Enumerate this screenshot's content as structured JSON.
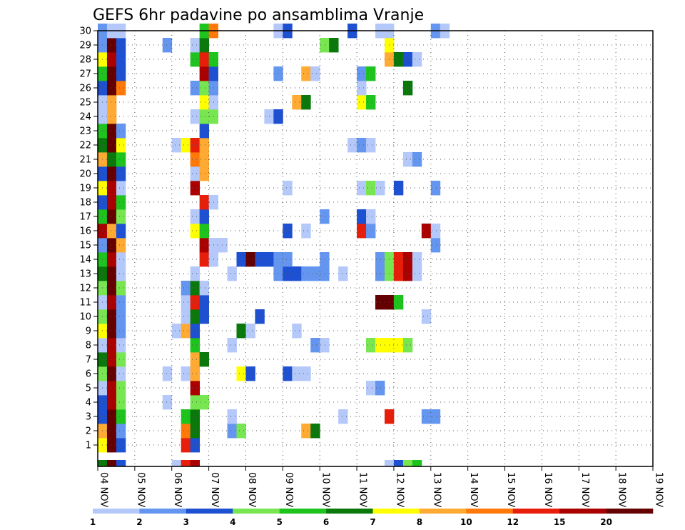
{
  "chart_data": {
    "type": "heatmap",
    "title": "GEFS 6hr padavine po ansamblima Vranje",
    "x_tick_labels": [
      "04 NOV",
      "05 NOV",
      "06 NOV",
      "07 NOV",
      "08 NOV",
      "09 NOV",
      "10 NOV",
      "11 NOV",
      "12 NOV",
      "13 NOV",
      "14 NOV",
      "15 NOV",
      "16 NOV",
      "17 NOV",
      "18 NOV",
      "19 NOV"
    ],
    "y_tick_labels": [
      "1",
      "2",
      "3",
      "4",
      "5",
      "6",
      "7",
      "8",
      "9",
      "10",
      "11",
      "12",
      "13",
      "14",
      "15",
      "16",
      "17",
      "18",
      "19",
      "20",
      "21",
      "22",
      "23",
      "24",
      "25",
      "26",
      "27",
      "28",
      "29",
      "30"
    ],
    "ylim": [
      0,
      30
    ],
    "time_steps_per_day": 4,
    "grid": "dotted",
    "colorbar": {
      "orientation": "horizontal",
      "position": "bottom",
      "labels": [
        "1",
        "2",
        "3",
        "4",
        "5",
        "6",
        "7",
        "8",
        "10",
        "12",
        "15",
        "20"
      ],
      "colors": [
        "#b4c8fa",
        "#6496f0",
        "#1e50d2",
        "#78e650",
        "#1ec31e",
        "#0a780a",
        "#ffff00",
        "#ffaa32",
        "#ff780a",
        "#e61e0a",
        "#aa0000",
        "#640000"
      ]
    },
    "ensemble_rows": [
      {
        "member": 1,
        "cells": [
          [
            0,
            6
          ],
          [
            1,
            11
          ],
          [
            2,
            2
          ],
          [
            9,
            9
          ],
          [
            10,
            2
          ]
        ]
      },
      {
        "member": 2,
        "cells": [
          [
            0,
            7
          ],
          [
            1,
            11
          ],
          [
            2,
            1
          ],
          [
            9,
            8
          ],
          [
            10,
            5
          ],
          [
            14,
            1
          ],
          [
            15,
            3
          ],
          [
            22,
            7
          ],
          [
            23,
            5
          ]
        ]
      },
      {
        "member": 3,
        "cells": [
          [
            0,
            2
          ],
          [
            1,
            11
          ],
          [
            2,
            4
          ],
          [
            9,
            4
          ],
          [
            10,
            5
          ],
          [
            14,
            0
          ],
          [
            26,
            0
          ],
          [
            31,
            9
          ],
          [
            35,
            1
          ],
          [
            36,
            1
          ]
        ]
      },
      {
        "member": 4,
        "cells": [
          [
            0,
            2
          ],
          [
            1,
            10
          ],
          [
            2,
            3
          ],
          [
            7,
            0
          ],
          [
            10,
            3
          ],
          [
            11,
            3
          ]
        ]
      },
      {
        "member": 5,
        "cells": [
          [
            0,
            0
          ],
          [
            1,
            10
          ],
          [
            2,
            3
          ],
          [
            10,
            10
          ],
          [
            29,
            0
          ],
          [
            30,
            1
          ]
        ]
      },
      {
        "member": 6,
        "cells": [
          [
            0,
            3
          ],
          [
            1,
            11
          ],
          [
            2,
            0
          ],
          [
            7,
            0
          ],
          [
            9,
            0
          ],
          [
            10,
            7
          ],
          [
            15,
            6
          ],
          [
            16,
            2
          ],
          [
            20,
            2
          ],
          [
            21,
            0
          ],
          [
            22,
            0
          ]
        ]
      },
      {
        "member": 7,
        "cells": [
          [
            0,
            5
          ],
          [
            1,
            10
          ],
          [
            2,
            3
          ],
          [
            10,
            7
          ],
          [
            11,
            5
          ]
        ]
      },
      {
        "member": 8,
        "cells": [
          [
            0,
            0
          ],
          [
            1,
            10
          ],
          [
            2,
            0
          ],
          [
            10,
            4
          ],
          [
            14,
            0
          ],
          [
            23,
            1
          ],
          [
            24,
            0
          ],
          [
            29,
            3
          ],
          [
            30,
            6
          ],
          [
            31,
            6
          ],
          [
            32,
            6
          ],
          [
            33,
            3
          ]
        ]
      },
      {
        "member": 9,
        "cells": [
          [
            0,
            6
          ],
          [
            1,
            11
          ],
          [
            2,
            1
          ],
          [
            8,
            0
          ],
          [
            9,
            7
          ],
          [
            10,
            2
          ],
          [
            15,
            5
          ],
          [
            16,
            0
          ],
          [
            21,
            0
          ]
        ]
      },
      {
        "member": 10,
        "cells": [
          [
            0,
            3
          ],
          [
            1,
            11
          ],
          [
            2,
            1
          ],
          [
            9,
            0
          ],
          [
            10,
            5
          ],
          [
            11,
            2
          ],
          [
            17,
            2
          ],
          [
            35,
            0
          ]
        ]
      },
      {
        "member": 11,
        "cells": [
          [
            0,
            0
          ],
          [
            1,
            10
          ],
          [
            2,
            1
          ],
          [
            9,
            0
          ],
          [
            10,
            9
          ],
          [
            11,
            2
          ],
          [
            30,
            11
          ],
          [
            31,
            11
          ],
          [
            32,
            4
          ]
        ]
      },
      {
        "member": 12,
        "cells": [
          [
            0,
            3
          ],
          [
            1,
            11
          ],
          [
            2,
            3
          ],
          [
            9,
            1
          ],
          [
            10,
            5
          ],
          [
            11,
            0
          ]
        ]
      },
      {
        "member": 13,
        "cells": [
          [
            0,
            5
          ],
          [
            1,
            11
          ],
          [
            2,
            0
          ],
          [
            10,
            0
          ],
          [
            14,
            0
          ],
          [
            19,
            1
          ],
          [
            20,
            2
          ],
          [
            21,
            2
          ],
          [
            22,
            1
          ],
          [
            23,
            1
          ],
          [
            24,
            1
          ],
          [
            26,
            0
          ],
          [
            30,
            1
          ],
          [
            31,
            3
          ],
          [
            32,
            9
          ],
          [
            33,
            10
          ],
          [
            34,
            0
          ]
        ]
      },
      {
        "member": 14,
        "cells": [
          [
            0,
            4
          ],
          [
            1,
            10
          ],
          [
            2,
            0
          ],
          [
            11,
            9
          ],
          [
            12,
            0
          ],
          [
            15,
            2
          ],
          [
            16,
            11
          ],
          [
            17,
            2
          ],
          [
            18,
            2
          ],
          [
            19,
            1
          ],
          [
            20,
            1
          ],
          [
            24,
            1
          ],
          [
            30,
            1
          ],
          [
            31,
            3
          ],
          [
            32,
            9
          ],
          [
            33,
            10
          ],
          [
            34,
            0
          ]
        ]
      },
      {
        "member": 15,
        "cells": [
          [
            0,
            1
          ],
          [
            1,
            11
          ],
          [
            2,
            7
          ],
          [
            11,
            10
          ],
          [
            12,
            0
          ],
          [
            13,
            0
          ],
          [
            36,
            1
          ]
        ]
      },
      {
        "member": 16,
        "cells": [
          [
            0,
            10
          ],
          [
            1,
            7
          ],
          [
            2,
            2
          ],
          [
            10,
            6
          ],
          [
            11,
            4
          ],
          [
            20,
            2
          ],
          [
            22,
            0
          ],
          [
            28,
            9
          ],
          [
            29,
            1
          ],
          [
            35,
            10
          ],
          [
            36,
            0
          ]
        ]
      },
      {
        "member": 17,
        "cells": [
          [
            0,
            4
          ],
          [
            1,
            11
          ],
          [
            2,
            3
          ],
          [
            10,
            0
          ],
          [
            11,
            2
          ],
          [
            24,
            1
          ],
          [
            28,
            2
          ],
          [
            29,
            0
          ]
        ]
      },
      {
        "member": 18,
        "cells": [
          [
            0,
            2
          ],
          [
            1,
            10
          ],
          [
            2,
            4
          ],
          [
            11,
            9
          ],
          [
            12,
            0
          ]
        ]
      },
      {
        "member": 19,
        "cells": [
          [
            0,
            6
          ],
          [
            1,
            10
          ],
          [
            2,
            0
          ],
          [
            10,
            10
          ],
          [
            20,
            0
          ],
          [
            28,
            0
          ],
          [
            29,
            3
          ],
          [
            30,
            0
          ],
          [
            32,
            2
          ],
          [
            36,
            1
          ]
        ]
      },
      {
        "member": 20,
        "cells": [
          [
            0,
            2
          ],
          [
            1,
            11
          ],
          [
            2,
            2
          ],
          [
            10,
            0
          ],
          [
            11,
            7
          ]
        ]
      },
      {
        "member": 21,
        "cells": [
          [
            0,
            7
          ],
          [
            1,
            5
          ],
          [
            2,
            4
          ],
          [
            10,
            8
          ],
          [
            11,
            7
          ],
          [
            33,
            0
          ],
          [
            34,
            1
          ]
        ]
      },
      {
        "member": 22,
        "cells": [
          [
            0,
            5
          ],
          [
            1,
            11
          ],
          [
            2,
            6
          ],
          [
            8,
            0
          ],
          [
            9,
            6
          ],
          [
            10,
            9
          ],
          [
            11,
            7
          ],
          [
            27,
            0
          ],
          [
            28,
            1
          ],
          [
            29,
            0
          ]
        ]
      },
      {
        "member": 23,
        "cells": [
          [
            0,
            4
          ],
          [
            1,
            11
          ],
          [
            2,
            1
          ],
          [
            11,
            2
          ]
        ]
      },
      {
        "member": 24,
        "cells": [
          [
            0,
            0
          ],
          [
            1,
            7
          ],
          [
            10,
            0
          ],
          [
            11,
            3
          ],
          [
            12,
            3
          ],
          [
            18,
            0
          ],
          [
            19,
            2
          ]
        ]
      },
      {
        "member": 25,
        "cells": [
          [
            0,
            0
          ],
          [
            1,
            7
          ],
          [
            11,
            6
          ],
          [
            12,
            0
          ],
          [
            21,
            7
          ],
          [
            22,
            5
          ],
          [
            28,
            6
          ],
          [
            29,
            4
          ]
        ]
      },
      {
        "member": 26,
        "cells": [
          [
            0,
            2
          ],
          [
            1,
            11
          ],
          [
            2,
            8
          ],
          [
            10,
            1
          ],
          [
            11,
            3
          ],
          [
            12,
            1
          ],
          [
            28,
            0
          ],
          [
            33,
            5
          ]
        ]
      },
      {
        "member": 27,
        "cells": [
          [
            0,
            4
          ],
          [
            1,
            11
          ],
          [
            2,
            2
          ],
          [
            11,
            10
          ],
          [
            12,
            2
          ],
          [
            19,
            1
          ],
          [
            22,
            7
          ],
          [
            23,
            0
          ],
          [
            28,
            1
          ],
          [
            29,
            4
          ]
        ]
      },
      {
        "member": 28,
        "cells": [
          [
            0,
            6
          ],
          [
            1,
            10
          ],
          [
            2,
            2
          ],
          [
            10,
            4
          ],
          [
            11,
            9
          ],
          [
            12,
            4
          ],
          [
            31,
            7
          ],
          [
            32,
            5
          ],
          [
            33,
            2
          ],
          [
            34,
            0
          ]
        ]
      },
      {
        "member": 29,
        "cells": [
          [
            0,
            1
          ],
          [
            1,
            11
          ],
          [
            2,
            2
          ],
          [
            7,
            1
          ],
          [
            10,
            0
          ],
          [
            11,
            5
          ],
          [
            24,
            3
          ],
          [
            25,
            5
          ],
          [
            31,
            6
          ]
        ]
      },
      {
        "member": 30,
        "cells": [
          [
            0,
            1
          ],
          [
            1,
            0
          ],
          [
            2,
            0
          ],
          [
            11,
            4
          ],
          [
            12,
            8
          ],
          [
            19,
            0
          ],
          [
            20,
            2
          ],
          [
            27,
            2
          ],
          [
            30,
            0
          ],
          [
            31,
            0
          ],
          [
            36,
            1
          ],
          [
            37,
            0
          ]
        ]
      }
    ],
    "bottom_strip": [
      [
        0,
        5
      ],
      [
        1,
        11
      ],
      [
        2,
        2
      ],
      [
        8,
        0
      ],
      [
        9,
        9
      ],
      [
        10,
        10
      ],
      [
        31,
        0
      ],
      [
        32,
        2
      ],
      [
        33,
        3
      ],
      [
        34,
        4
      ]
    ]
  }
}
